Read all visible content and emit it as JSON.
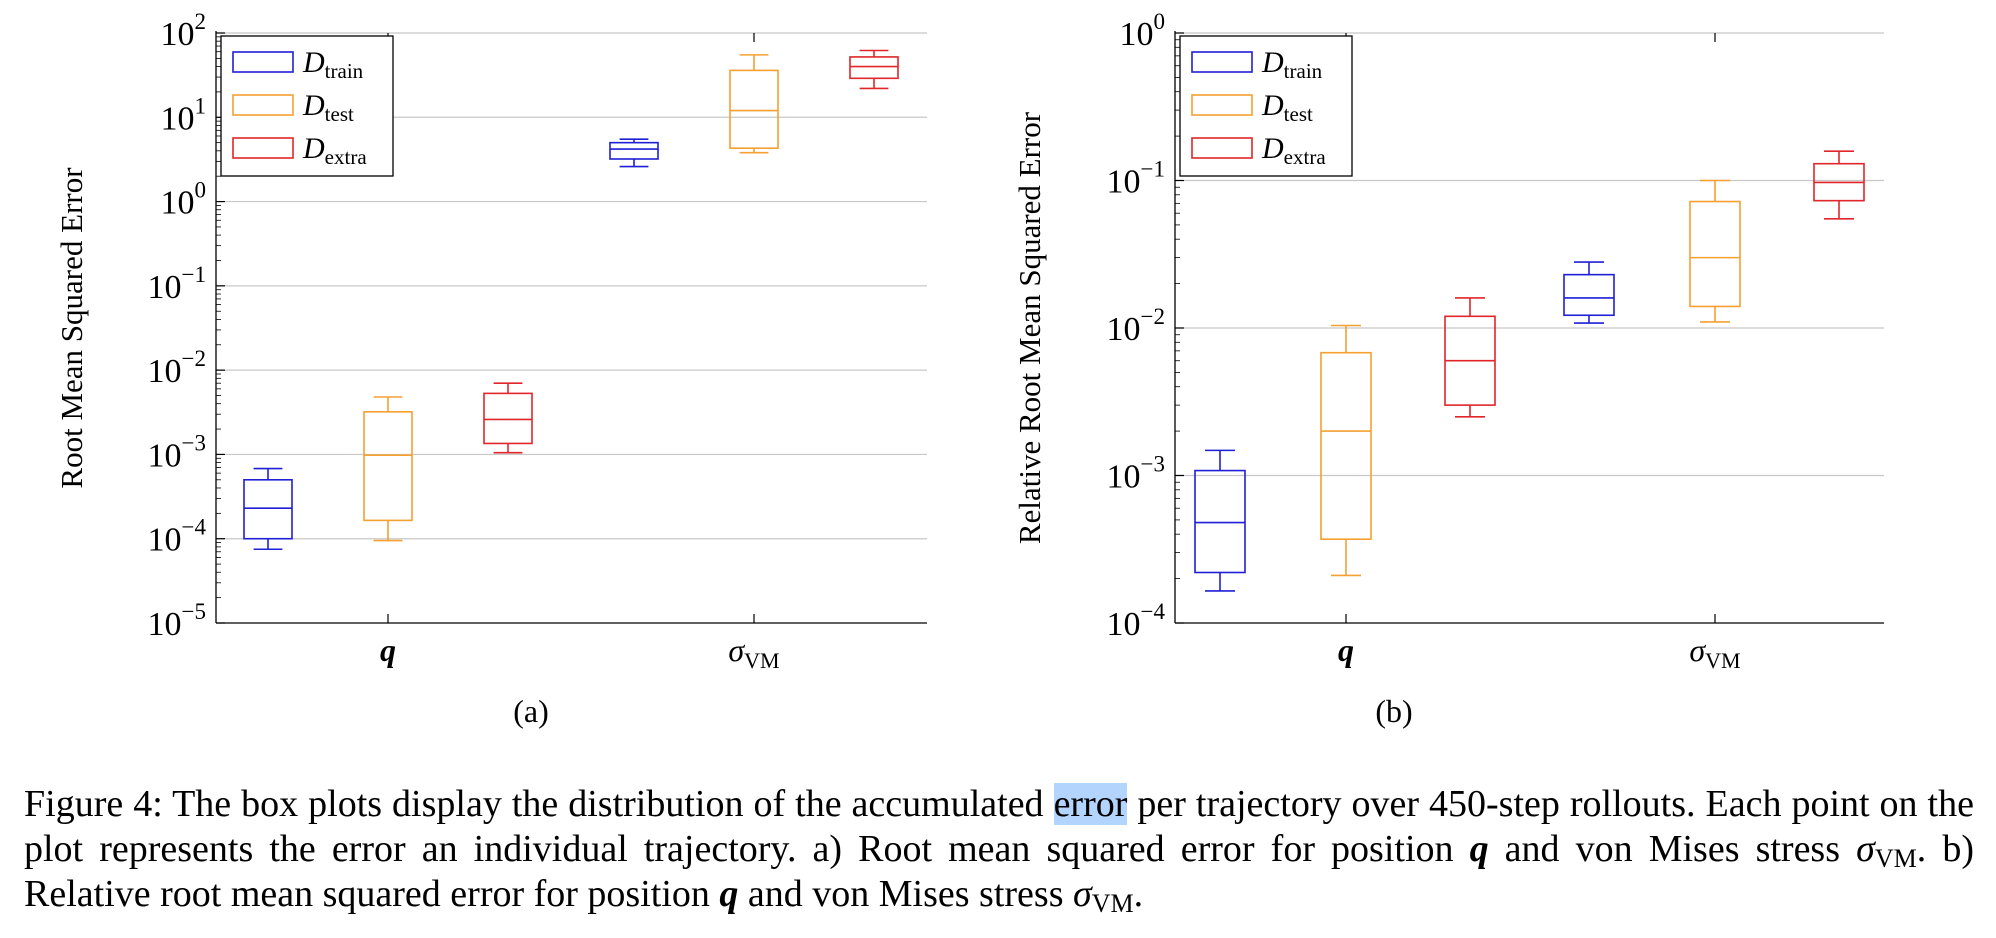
{
  "chart_data": [
    {
      "type": "box",
      "panel_label": "(a)",
      "ylabel": "Root Mean Squared Error",
      "yscale": "log",
      "ylim": [
        1e-05,
        100
      ],
      "yticks": [
        {
          "base": "10",
          "exp": "−5",
          "value": 1e-05
        },
        {
          "base": "10",
          "exp": "−4",
          "value": 0.0001
        },
        {
          "base": "10",
          "exp": "−3",
          "value": 0.001
        },
        {
          "base": "10",
          "exp": "−2",
          "value": 0.01
        },
        {
          "base": "10",
          "exp": "−1",
          "value": 0.1
        },
        {
          "base": "10",
          "exp": "0",
          "value": 1
        },
        {
          "base": "10",
          "exp": "1",
          "value": 10
        },
        {
          "base": "10",
          "exp": "2",
          "value": 100
        }
      ],
      "groups": [
        {
          "label": "q",
          "style": "bold-italic"
        },
        {
          "label": "σ",
          "sub": "VM",
          "style": "italic"
        }
      ],
      "grid": true,
      "legend_position": "top-left",
      "series": [
        {
          "name": "D",
          "sub": "train",
          "color": "#1f1fd6",
          "boxes": [
            {
              "whislo": 7.5e-05,
              "q1": 0.0001,
              "med": 0.00023,
              "q3": 0.0005,
              "whishi": 0.00068
            },
            {
              "whislo": 2.6,
              "q1": 3.2,
              "med": 4.2,
              "q3": 5.0,
              "whishi": 5.5
            }
          ]
        },
        {
          "name": "D",
          "sub": "test",
          "color": "#f5a030",
          "boxes": [
            {
              "whislo": 9.5e-05,
              "q1": 0.000165,
              "med": 0.00098,
              "q3": 0.0032,
              "whishi": 0.0048
            },
            {
              "whislo": 3.8,
              "q1": 4.3,
              "med": 12,
              "q3": 36,
              "whishi": 55
            }
          ]
        },
        {
          "name": "D",
          "sub": "extra",
          "color": "#e0262a",
          "boxes": [
            {
              "whislo": 0.00105,
              "q1": 0.00135,
              "med": 0.0026,
              "q3": 0.0053,
              "whishi": 0.007
            },
            {
              "whislo": 22,
              "q1": 29,
              "med": 40,
              "q3": 52,
              "whishi": 62
            }
          ]
        }
      ]
    },
    {
      "type": "box",
      "panel_label": "(b)",
      "ylabel": "Relative Root Mean Squared Error",
      "yscale": "log",
      "ylim": [
        0.0001,
        1
      ],
      "yticks": [
        {
          "base": "10",
          "exp": "−4",
          "value": 0.0001
        },
        {
          "base": "10",
          "exp": "−3",
          "value": 0.001
        },
        {
          "base": "10",
          "exp": "−2",
          "value": 0.01
        },
        {
          "base": "10",
          "exp": "−1",
          "value": 0.1
        },
        {
          "base": "10",
          "exp": "0",
          "value": 1
        }
      ],
      "groups": [
        {
          "label": "q",
          "style": "bold-italic"
        },
        {
          "label": "σ",
          "sub": "VM",
          "style": "italic"
        }
      ],
      "grid": true,
      "legend_position": "top-left",
      "series": [
        {
          "name": "D",
          "sub": "train",
          "color": "#1f1fd6",
          "boxes": [
            {
              "whislo": 0.000165,
              "q1": 0.00022,
              "med": 0.00048,
              "q3": 0.00108,
              "whishi": 0.00148
            },
            {
              "whislo": 0.0108,
              "q1": 0.0122,
              "med": 0.016,
              "q3": 0.023,
              "whishi": 0.028
            }
          ]
        },
        {
          "name": "D",
          "sub": "test",
          "color": "#f5a030",
          "boxes": [
            {
              "whislo": 0.00021,
              "q1": 0.00037,
              "med": 0.002,
              "q3": 0.0068,
              "whishi": 0.0104
            },
            {
              "whislo": 0.011,
              "q1": 0.014,
              "med": 0.03,
              "q3": 0.072,
              "whishi": 0.1
            }
          ]
        },
        {
          "name": "D",
          "sub": "extra",
          "color": "#e0262a",
          "boxes": [
            {
              "whislo": 0.0025,
              "q1": 0.003,
              "med": 0.006,
              "q3": 0.012,
              "whishi": 0.016
            },
            {
              "whislo": 0.055,
              "q1": 0.073,
              "med": 0.097,
              "q3": 0.13,
              "whishi": 0.158
            }
          ]
        }
      ]
    }
  ],
  "caption": {
    "p1": "Figure 4: The box plots display the distribution of the accumulated ",
    "highlight": "error",
    "p2": " per trajectory over 450-step rollouts. Each point on the plot represents the error an individual trajectory. a) Root mean squared error for position ",
    "q1": "q",
    "p3": " and von Mises stress ",
    "sigma1": "σ",
    "sub1": "VM",
    "p4": ". b) Relative root mean squared error for position ",
    "q2": "q",
    "p5": " and von Mises stress ",
    "sigma2": "σ",
    "sub2": "VM",
    "p6": "."
  }
}
